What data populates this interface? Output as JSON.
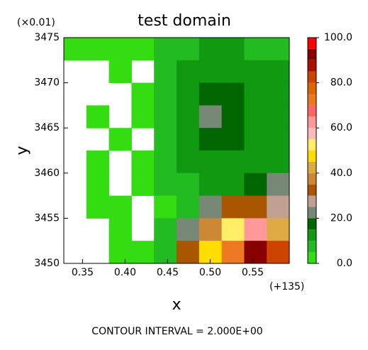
{
  "chart_data": {
    "type": "contour",
    "title": "test domain",
    "x_label": "x",
    "y_label": "y",
    "y_scale_note": "(×0.01)",
    "x_offset_note": "(+135)",
    "footnote": "CONTOUR INTERVAL = 2.000E+00",
    "xlim": [
      0.328,
      0.593
    ],
    "ylim": [
      3450,
      3475
    ],
    "xticks": [
      0.35,
      {
        "value": 0.4,
        "label": "0.40"
      },
      0.45,
      {
        "value": 0.5,
        "label": "0.50"
      },
      0.55
    ],
    "yticks": [
      3450,
      3455,
      3460,
      3465,
      3470,
      3475
    ],
    "z": [
      [
        4,
        4,
        3,
        3,
        6,
        8,
        10,
        12,
        8,
        8
      ],
      [
        null,
        null,
        4,
        null,
        6,
        10,
        12,
        14,
        10,
        10
      ],
      [
        null,
        null,
        null,
        2,
        6,
        12,
        18,
        16,
        12,
        10
      ],
      [
        null,
        2,
        null,
        4,
        8,
        14,
        22,
        18,
        14,
        12
      ],
      [
        null,
        null,
        2,
        null,
        6,
        12,
        16,
        16,
        14,
        12
      ],
      [
        null,
        4,
        null,
        4,
        6,
        10,
        12,
        12,
        12,
        12
      ],
      [
        null,
        4,
        null,
        4,
        6,
        8,
        10,
        14,
        18,
        20
      ],
      [
        null,
        4,
        2,
        null,
        4,
        8,
        24,
        30,
        34,
        28
      ],
      [
        null,
        null,
        4,
        null,
        6,
        20,
        36,
        50,
        60,
        40
      ],
      [
        null,
        null,
        2,
        4,
        8,
        30,
        48,
        70,
        90,
        80
      ]
    ],
    "levels": [
      0,
      5,
      10,
      15,
      20,
      25,
      30,
      35,
      40,
      45,
      50,
      55,
      60,
      65,
      70,
      75,
      80,
      85,
      90,
      95,
      100
    ],
    "colors": [
      "#33dd11",
      "#22bb22",
      "#119911",
      "#006600",
      "#778877",
      "#c0a090",
      "#aa5500",
      "#cc8833",
      "#ddaa44",
      "#ffdd00",
      "#ffee66",
      "#ffbbbb",
      "#ff9999",
      "#ff6666",
      "#ee7722",
      "#dd6600",
      "#cc4400",
      "#aa1100",
      "#880000",
      "#ff0000"
    ],
    "colorbar_ticks": [
      {
        "value": 0,
        "label": "0.0"
      },
      {
        "value": 20,
        "label": "20.0"
      },
      {
        "value": 40,
        "label": "40.0"
      },
      {
        "value": 60,
        "label": "60.0"
      },
      {
        "value": 80,
        "label": "80.0"
      },
      {
        "value": 100,
        "label": "100.0"
      }
    ]
  }
}
